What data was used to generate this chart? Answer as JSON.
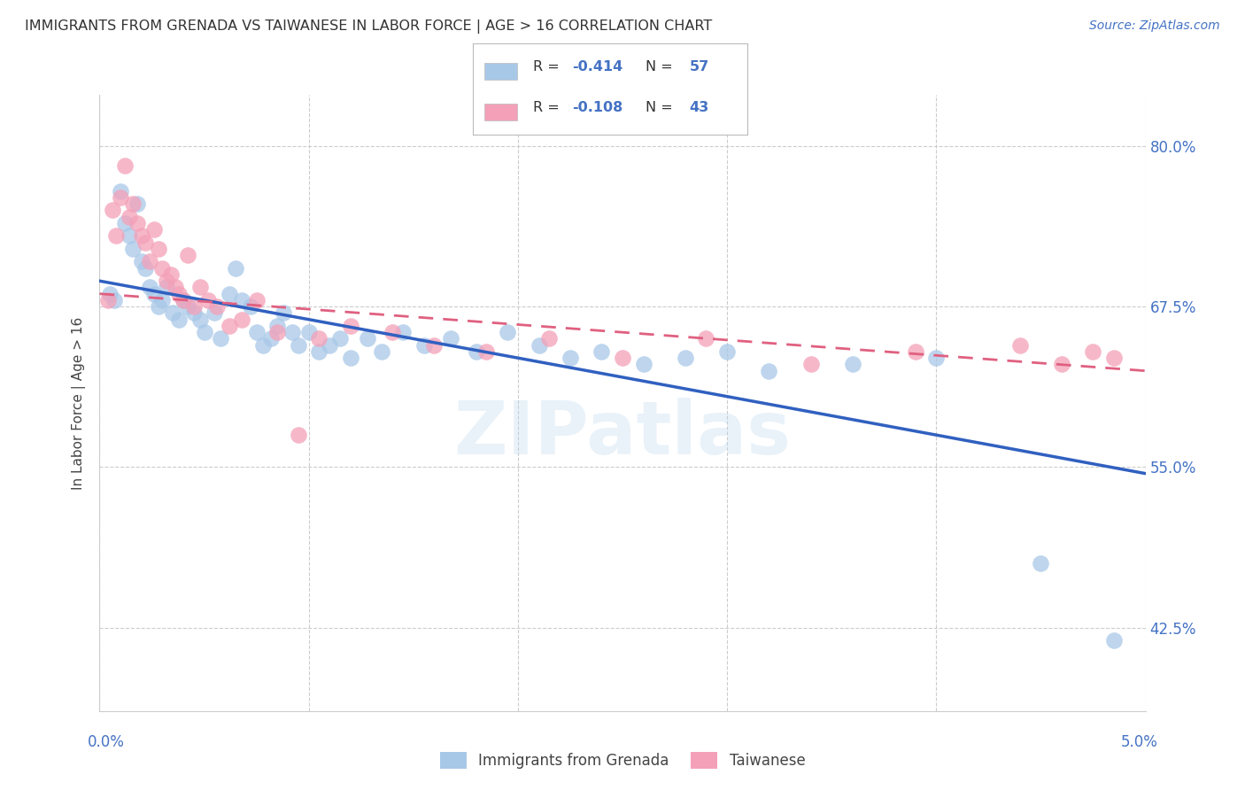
{
  "title": "IMMIGRANTS FROM GRENADA VS TAIWANESE IN LABOR FORCE | AGE > 16 CORRELATION CHART",
  "source": "Source: ZipAtlas.com",
  "ylabel": "In Labor Force | Age > 16",
  "y_ticks": [
    42.5,
    55.0,
    67.5,
    80.0
  ],
  "y_tick_labels": [
    "42.5%",
    "55.0%",
    "67.5%",
    "80.0%"
  ],
  "x_range": [
    0.0,
    5.0
  ],
  "y_range": [
    36.0,
    84.0
  ],
  "legend_label1": "Immigrants from Grenada",
  "legend_label2": "Taiwanese",
  "R1": -0.414,
  "N1": 57,
  "R2": -0.108,
  "N2": 43,
  "color_blue": "#a8c8e8",
  "color_pink": "#f4a0b8",
  "color_blue_line": "#3060c0",
  "color_pink_line": "#e06080",
  "color_title": "#333333",
  "color_source": "#4472c4",
  "color_axis_labels": "#4472c4",
  "background": "#ffffff",
  "watermark": "ZIPatlas",
  "blue_scatter_x": [
    0.05,
    0.07,
    0.1,
    0.12,
    0.14,
    0.16,
    0.18,
    0.2,
    0.22,
    0.24,
    0.26,
    0.28,
    0.3,
    0.32,
    0.35,
    0.38,
    0.4,
    0.42,
    0.45,
    0.48,
    0.5,
    0.55,
    0.58,
    0.62,
    0.65,
    0.68,
    0.72,
    0.75,
    0.78,
    0.82,
    0.85,
    0.88,
    0.92,
    0.95,
    1.0,
    1.05,
    1.1,
    1.15,
    1.2,
    1.28,
    1.35,
    1.45,
    1.55,
    1.68,
    1.8,
    1.95,
    2.1,
    2.25,
    2.4,
    2.6,
    2.8,
    3.0,
    3.2,
    3.6,
    4.0,
    4.5,
    4.85
  ],
  "blue_scatter_y": [
    68.5,
    68.0,
    76.5,
    74.0,
    73.0,
    72.0,
    75.5,
    71.0,
    70.5,
    69.0,
    68.5,
    67.5,
    68.0,
    69.0,
    67.0,
    66.5,
    68.0,
    67.5,
    67.0,
    66.5,
    65.5,
    67.0,
    65.0,
    68.5,
    70.5,
    68.0,
    67.5,
    65.5,
    64.5,
    65.0,
    66.0,
    67.0,
    65.5,
    64.5,
    65.5,
    64.0,
    64.5,
    65.0,
    63.5,
    65.0,
    64.0,
    65.5,
    64.5,
    65.0,
    64.0,
    65.5,
    64.5,
    63.5,
    64.0,
    63.0,
    63.5,
    64.0,
    62.5,
    63.0,
    63.5,
    47.5,
    41.5
  ],
  "pink_scatter_x": [
    0.04,
    0.06,
    0.08,
    0.1,
    0.12,
    0.14,
    0.16,
    0.18,
    0.2,
    0.22,
    0.24,
    0.26,
    0.28,
    0.3,
    0.32,
    0.34,
    0.36,
    0.38,
    0.4,
    0.42,
    0.45,
    0.48,
    0.52,
    0.56,
    0.62,
    0.68,
    0.75,
    0.85,
    0.95,
    1.05,
    1.2,
    1.4,
    1.6,
    1.85,
    2.15,
    2.5,
    2.9,
    3.4,
    3.9,
    4.4,
    4.6,
    4.75,
    4.85
  ],
  "pink_scatter_y": [
    68.0,
    75.0,
    73.0,
    76.0,
    78.5,
    74.5,
    75.5,
    74.0,
    73.0,
    72.5,
    71.0,
    73.5,
    72.0,
    70.5,
    69.5,
    70.0,
    69.0,
    68.5,
    68.0,
    71.5,
    67.5,
    69.0,
    68.0,
    67.5,
    66.0,
    66.5,
    68.0,
    65.5,
    57.5,
    65.0,
    66.0,
    65.5,
    64.5,
    64.0,
    65.0,
    63.5,
    65.0,
    63.0,
    64.0,
    64.5,
    63.0,
    64.0,
    63.5
  ],
  "blue_line_x": [
    0.0,
    5.0
  ],
  "blue_line_y": [
    69.5,
    54.5
  ],
  "pink_line_x": [
    0.0,
    5.0
  ],
  "pink_line_y": [
    68.5,
    62.5
  ]
}
